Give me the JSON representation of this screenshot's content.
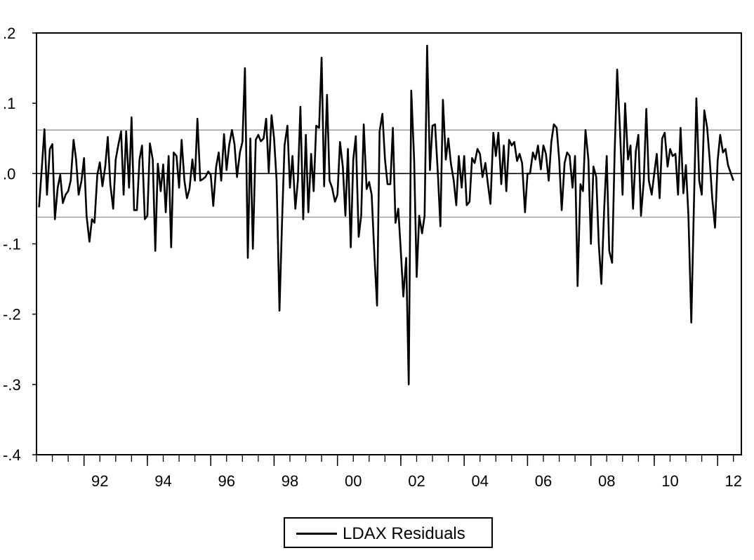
{
  "chart_data": {
    "type": "line",
    "title": "",
    "xlabel": "",
    "ylabel": "",
    "x_tick_labels": [
      "92",
      "94",
      "96",
      "98",
      "00",
      "02",
      "04",
      "06",
      "08",
      "10",
      "12"
    ],
    "y_tick_labels": [
      ".2",
      ".1",
      ".0",
      "-.1",
      "-.2",
      "-.3",
      "-.4"
    ],
    "ylim": [
      -0.4,
      0.2
    ],
    "xlim": [
      1990.5,
      2012.75
    ],
    "grid": false,
    "legend_position": "bottom-center",
    "reference_lines": [
      {
        "y": 0.0,
        "style": "solid"
      },
      {
        "y": 0.062,
        "style": "thin-gray"
      },
      {
        "y": -0.062,
        "style": "thin-gray"
      }
    ],
    "series": [
      {
        "name": "LDAX Residuals",
        "color": "#000000",
        "points": [
          [
            1990.58,
            -0.048
          ],
          [
            1990.67,
            0.01
          ],
          [
            1990.75,
            0.063
          ],
          [
            1990.83,
            -0.03
          ],
          [
            1990.92,
            0.035
          ],
          [
            1991.0,
            0.042
          ],
          [
            1991.08,
            -0.065
          ],
          [
            1991.17,
            -0.02
          ],
          [
            1991.25,
            -0.002
          ],
          [
            1991.33,
            -0.042
          ],
          [
            1991.42,
            -0.03
          ],
          [
            1991.5,
            -0.025
          ],
          [
            1991.58,
            -0.01
          ],
          [
            1991.67,
            0.048
          ],
          [
            1991.75,
            0.02
          ],
          [
            1991.83,
            -0.03
          ],
          [
            1991.92,
            -0.01
          ],
          [
            1992.0,
            0.022
          ],
          [
            1992.08,
            -0.06
          ],
          [
            1992.17,
            -0.097
          ],
          [
            1992.25,
            -0.065
          ],
          [
            1992.33,
            -0.07
          ],
          [
            1992.42,
            -0.002
          ],
          [
            1992.5,
            0.016
          ],
          [
            1992.58,
            -0.018
          ],
          [
            1992.67,
            0.01
          ],
          [
            1992.75,
            0.052
          ],
          [
            1992.83,
            -0.015
          ],
          [
            1992.92,
            -0.05
          ],
          [
            1993.0,
            0.02
          ],
          [
            1993.08,
            0.04
          ],
          [
            1993.17,
            0.06
          ],
          [
            1993.25,
            -0.03
          ],
          [
            1993.33,
            0.06
          ],
          [
            1993.42,
            -0.02
          ],
          [
            1993.5,
            0.08
          ],
          [
            1993.58,
            -0.052
          ],
          [
            1993.67,
            -0.052
          ],
          [
            1993.75,
            0.02
          ],
          [
            1993.83,
            0.04
          ],
          [
            1993.92,
            -0.065
          ],
          [
            1994.0,
            -0.06
          ],
          [
            1994.08,
            0.043
          ],
          [
            1994.17,
            0.02
          ],
          [
            1994.25,
            -0.11
          ],
          [
            1994.33,
            0.014
          ],
          [
            1994.42,
            -0.025
          ],
          [
            1994.5,
            0.013
          ],
          [
            1994.58,
            -0.055
          ],
          [
            1994.67,
            0.025
          ],
          [
            1994.75,
            -0.105
          ],
          [
            1994.83,
            0.03
          ],
          [
            1994.92,
            0.025
          ],
          [
            1995.0,
            -0.02
          ],
          [
            1995.08,
            0.048
          ],
          [
            1995.17,
            -0.01
          ],
          [
            1995.25,
            -0.035
          ],
          [
            1995.33,
            -0.022
          ],
          [
            1995.42,
            0.02
          ],
          [
            1995.5,
            -0.01
          ],
          [
            1995.58,
            0.078
          ],
          [
            1995.67,
            -0.01
          ],
          [
            1995.75,
            -0.008
          ],
          [
            1995.83,
            -0.005
          ],
          [
            1995.92,
            0.003
          ],
          [
            1996.0,
            -0.002
          ],
          [
            1996.08,
            -0.046
          ],
          [
            1996.17,
            0.01
          ],
          [
            1996.25,
            0.03
          ],
          [
            1996.33,
            -0.01
          ],
          [
            1996.42,
            0.056
          ],
          [
            1996.5,
            0.005
          ],
          [
            1996.58,
            0.04
          ],
          [
            1996.67,
            0.062
          ],
          [
            1996.75,
            0.042
          ],
          [
            1996.83,
            -0.005
          ],
          [
            1996.92,
            0.03
          ],
          [
            1997.0,
            0.045
          ],
          [
            1997.08,
            0.15
          ],
          [
            1997.17,
            -0.12
          ],
          [
            1997.25,
            0.05
          ],
          [
            1997.33,
            -0.107
          ],
          [
            1997.42,
            0.048
          ],
          [
            1997.5,
            0.055
          ],
          [
            1997.58,
            0.046
          ],
          [
            1997.67,
            0.05
          ],
          [
            1997.75,
            0.078
          ],
          [
            1997.83,
            0.002
          ],
          [
            1997.92,
            0.083
          ],
          [
            1998.0,
            0.05
          ],
          [
            1998.08,
            -0.01
          ],
          [
            1998.17,
            -0.195
          ],
          [
            1998.25,
            -0.07
          ],
          [
            1998.33,
            0.04
          ],
          [
            1998.42,
            0.068
          ],
          [
            1998.5,
            -0.02
          ],
          [
            1998.58,
            0.025
          ],
          [
            1998.67,
            -0.05
          ],
          [
            1998.75,
            -0.01
          ],
          [
            1998.83,
            0.095
          ],
          [
            1998.92,
            -0.065
          ],
          [
            1999.0,
            0.055
          ],
          [
            1999.08,
            -0.055
          ],
          [
            1999.17,
            0.028
          ],
          [
            1999.25,
            -0.025
          ],
          [
            1999.33,
            0.068
          ],
          [
            1999.42,
            0.065
          ],
          [
            1999.5,
            0.165
          ],
          [
            1999.58,
            -0.018
          ],
          [
            1999.67,
            0.112
          ],
          [
            1999.75,
            -0.01
          ],
          [
            1999.83,
            -0.02
          ],
          [
            1999.92,
            -0.04
          ],
          [
            2000.0,
            -0.03
          ],
          [
            2000.08,
            0.045
          ],
          [
            2000.17,
            0.01
          ],
          [
            2000.25,
            -0.06
          ],
          [
            2000.33,
            0.035
          ],
          [
            2000.42,
            -0.105
          ],
          [
            2000.5,
            0.02
          ],
          [
            2000.58,
            0.053
          ],
          [
            2000.67,
            -0.09
          ],
          [
            2000.75,
            -0.06
          ],
          [
            2000.83,
            0.07
          ],
          [
            2000.92,
            -0.022
          ],
          [
            2001.0,
            -0.012
          ],
          [
            2001.08,
            -0.03
          ],
          [
            2001.17,
            -0.12
          ],
          [
            2001.25,
            -0.188
          ],
          [
            2001.33,
            0.06
          ],
          [
            2001.42,
            0.085
          ],
          [
            2001.5,
            0.02
          ],
          [
            2001.58,
            -0.015
          ],
          [
            2001.67,
            -0.015
          ],
          [
            2001.75,
            0.065
          ],
          [
            2001.83,
            -0.07
          ],
          [
            2001.92,
            -0.05
          ],
          [
            2002.0,
            -0.11
          ],
          [
            2002.08,
            -0.175
          ],
          [
            2002.17,
            -0.12
          ],
          [
            2002.25,
            -0.3
          ],
          [
            2002.33,
            0.118
          ],
          [
            2002.42,
            0.02
          ],
          [
            2002.5,
            -0.147
          ],
          [
            2002.58,
            -0.06
          ],
          [
            2002.67,
            -0.085
          ],
          [
            2002.75,
            -0.06
          ],
          [
            2002.83,
            0.182
          ],
          [
            2002.92,
            0.005
          ],
          [
            2003.0,
            0.068
          ],
          [
            2003.08,
            0.07
          ],
          [
            2003.17,
            0.0
          ],
          [
            2003.25,
            -0.075
          ],
          [
            2003.33,
            0.105
          ],
          [
            2003.42,
            0.02
          ],
          [
            2003.5,
            0.05
          ],
          [
            2003.58,
            0.015
          ],
          [
            2003.67,
            -0.01
          ],
          [
            2003.75,
            -0.045
          ],
          [
            2003.83,
            0.025
          ],
          [
            2003.92,
            -0.02
          ],
          [
            2004.0,
            0.025
          ],
          [
            2004.08,
            -0.045
          ],
          [
            2004.17,
            -0.04
          ],
          [
            2004.25,
            0.022
          ],
          [
            2004.33,
            0.015
          ],
          [
            2004.42,
            0.035
          ],
          [
            2004.5,
            0.028
          ],
          [
            2004.58,
            -0.005
          ],
          [
            2004.67,
            0.015
          ],
          [
            2004.75,
            -0.015
          ],
          [
            2004.83,
            -0.043
          ],
          [
            2004.92,
            0.058
          ],
          [
            2005.0,
            0.025
          ],
          [
            2005.08,
            0.058
          ],
          [
            2005.17,
            -0.015
          ],
          [
            2005.25,
            0.04
          ],
          [
            2005.33,
            -0.025
          ],
          [
            2005.42,
            0.048
          ],
          [
            2005.5,
            0.04
          ],
          [
            2005.58,
            0.045
          ],
          [
            2005.67,
            0.018
          ],
          [
            2005.75,
            0.028
          ],
          [
            2005.83,
            0.015
          ],
          [
            2005.92,
            -0.055
          ],
          [
            2006.0,
            0.0
          ],
          [
            2006.08,
            0.0
          ],
          [
            2006.17,
            0.03
          ],
          [
            2006.25,
            0.02
          ],
          [
            2006.33,
            0.04
          ],
          [
            2006.42,
            0.006
          ],
          [
            2006.5,
            0.04
          ],
          [
            2006.58,
            0.028
          ],
          [
            2006.67,
            -0.01
          ],
          [
            2006.75,
            0.045
          ],
          [
            2006.83,
            0.07
          ],
          [
            2006.92,
            0.065
          ],
          [
            2007.0,
            0.02
          ],
          [
            2007.08,
            -0.052
          ],
          [
            2007.17,
            0.015
          ],
          [
            2007.25,
            0.03
          ],
          [
            2007.33,
            0.025
          ],
          [
            2007.42,
            -0.02
          ],
          [
            2007.5,
            0.025
          ],
          [
            2007.58,
            -0.16
          ],
          [
            2007.67,
            -0.015
          ],
          [
            2007.75,
            -0.025
          ],
          [
            2007.83,
            0.062
          ],
          [
            2007.92,
            0.02
          ],
          [
            2008.0,
            -0.1
          ],
          [
            2008.08,
            0.01
          ],
          [
            2008.17,
            -0.005
          ],
          [
            2008.25,
            -0.1
          ],
          [
            2008.33,
            -0.157
          ],
          [
            2008.42,
            -0.05
          ],
          [
            2008.5,
            0.025
          ],
          [
            2008.58,
            -0.11
          ],
          [
            2008.67,
            -0.127
          ],
          [
            2008.75,
            0.03
          ],
          [
            2008.83,
            0.148
          ],
          [
            2008.92,
            0.06
          ],
          [
            2009.0,
            -0.03
          ],
          [
            2009.08,
            0.1
          ],
          [
            2009.17,
            0.02
          ],
          [
            2009.25,
            0.04
          ],
          [
            2009.33,
            -0.05
          ],
          [
            2009.42,
            0.032
          ],
          [
            2009.5,
            0.055
          ],
          [
            2009.58,
            -0.06
          ],
          [
            2009.67,
            -0.01
          ],
          [
            2009.75,
            0.092
          ],
          [
            2009.83,
            -0.01
          ],
          [
            2009.92,
            -0.03
          ],
          [
            2010.0,
            0.0
          ],
          [
            2010.08,
            0.028
          ],
          [
            2010.17,
            -0.035
          ],
          [
            2010.25,
            0.05
          ],
          [
            2010.33,
            0.058
          ],
          [
            2010.42,
            0.01
          ],
          [
            2010.5,
            0.035
          ],
          [
            2010.58,
            0.025
          ],
          [
            2010.67,
            0.028
          ],
          [
            2010.75,
            -0.03
          ],
          [
            2010.83,
            0.065
          ],
          [
            2010.92,
            -0.028
          ],
          [
            2011.0,
            0.012
          ],
          [
            2011.08,
            -0.06
          ],
          [
            2011.17,
            -0.212
          ],
          [
            2011.25,
            -0.05
          ],
          [
            2011.33,
            0.107
          ],
          [
            2011.42,
            -0.01
          ],
          [
            2011.5,
            -0.03
          ],
          [
            2011.58,
            0.09
          ],
          [
            2011.67,
            0.065
          ],
          [
            2011.75,
            0.02
          ],
          [
            2011.83,
            -0.035
          ],
          [
            2011.92,
            -0.077
          ],
          [
            2012.0,
            0.018
          ],
          [
            2012.08,
            0.055
          ],
          [
            2012.17,
            0.03
          ],
          [
            2012.25,
            0.035
          ],
          [
            2012.33,
            0.012
          ],
          [
            2012.42,
            0.0
          ],
          [
            2012.5,
            -0.01
          ]
        ]
      }
    ]
  },
  "legend": {
    "label": "LDAX Residuals"
  }
}
